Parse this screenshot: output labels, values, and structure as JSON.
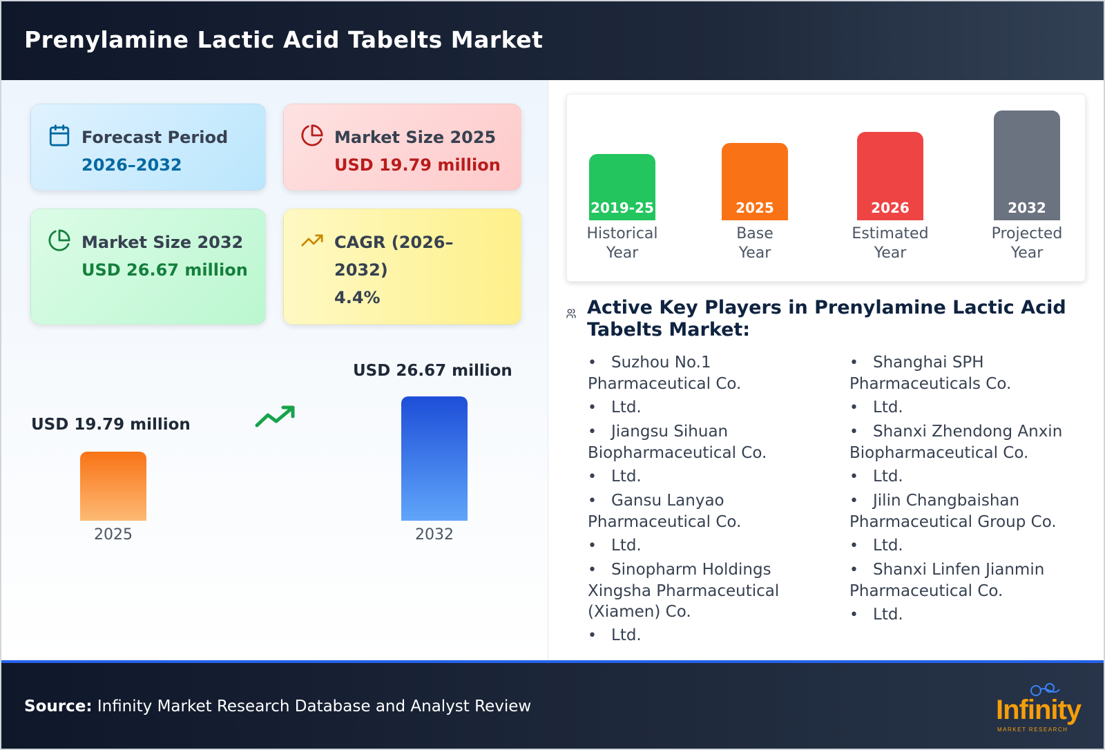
{
  "header": {
    "title": "Prenylamine Lactic Acid Tabelts Market"
  },
  "cards": {
    "forecast": {
      "title": "Forecast Period",
      "value": "2026–2032",
      "icon": "calendar-icon"
    },
    "size2025": {
      "title": "Market Size 2025",
      "value": "USD 19.79 million",
      "icon": "pie-chart-icon"
    },
    "size2032": {
      "title": "Market Size 2032",
      "value": "USD 26.67 million",
      "icon": "pie-chart-icon"
    },
    "cagr": {
      "title": "CAGR (2026–2032)",
      "value": "4.4%",
      "icon": "trending-up-icon"
    }
  },
  "growth": {
    "start_label": "USD 19.79 million",
    "end_label": "USD 26.67 million",
    "start_year": "2025",
    "end_year": "2032"
  },
  "timeline": {
    "items": [
      {
        "year": "2019-25",
        "caption_line1": "Historical",
        "caption_line2": "Year",
        "color": "#22c55e"
      },
      {
        "year": "2025",
        "caption_line1": "Base",
        "caption_line2": "Year",
        "color": "#f97316"
      },
      {
        "year": "2026",
        "caption_line1": "Estimated",
        "caption_line2": "Year",
        "color": "#ef4444"
      },
      {
        "year": "2032",
        "caption_line1": "Projected",
        "caption_line2": "Year",
        "color": "#6b7280"
      }
    ]
  },
  "key_players": {
    "title": "Active Key Players in Prenylamine Lactic Acid Tabelts Market:",
    "icon": "users-icon",
    "col1": [
      "Suzhou No.1 Pharmaceutical Co.",
      "Ltd.",
      "Jiangsu Sihuan Biopharmaceutical Co.",
      "Ltd.",
      "Gansu Lanyao Pharmaceutical Co.",
      "Ltd.",
      "Sinopharm Holdings Xingsha Pharmaceutical (Xiamen) Co.",
      "Ltd."
    ],
    "col2": [
      "Shanghai SPH Pharmaceuticals Co.",
      "Ltd.",
      "Shanxi Zhendong Anxin Biopharmaceutical Co.",
      "Ltd.",
      "Jilin Changbaishan Pharmaceutical Group Co.",
      "Ltd.",
      "Shanxi Linfen Jianmin Pharmaceutical Co.",
      "Ltd."
    ]
  },
  "footer": {
    "source_label": "Source:",
    "source_text": "Infinity Market Research Database and Analyst Review",
    "logo_word": "Infinity",
    "logo_sub": "MARKET RESEARCH"
  }
}
